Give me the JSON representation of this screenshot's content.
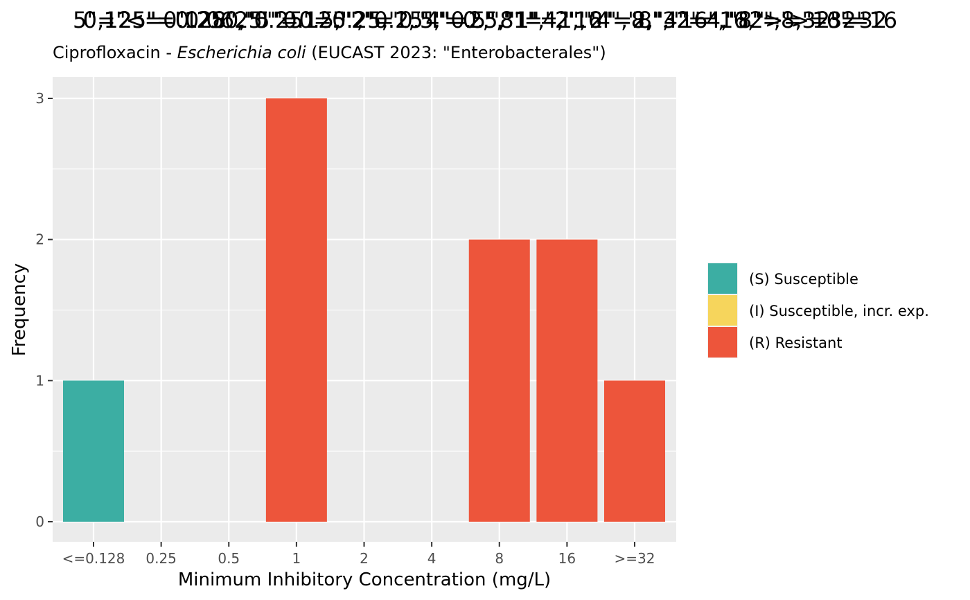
{
  "chart_data": {
    "type": "bar",
    "title": "",
    "title_overlay": [
      "0,125\"=0.250,\"5\"=0.5,\"2\"=1,\"4\"=2,\"8\"=4,\"16\"=8,\"32\"=16,\">=32\"=32",
      "5\"=\"<=0.128\",\"0.25\"=0.25,\"0.5\"=0.5,\"1\"=1,\"2\"=2,\"4\"=4,\"8\"=8,\"16\"=16",
      "125\"=\"0.0625\"\"0.125\",\"0.25\",\"0.5\",\"1\",\"2\",\"4\",\"8\",\"16\",\"32\",\">=32\""
    ],
    "subtitle_prefix": "Ciprofloxacin - ",
    "subtitle_italic": "Escherichia coli",
    "subtitle_suffix": " (EUCAST 2023: \"Enterobacterales\")",
    "xlabel": "Minimum Inhibitory Concentration (mg/L)",
    "ylabel": "Frequency",
    "categories": [
      "<=0.128",
      "0.25",
      "0.5",
      "1",
      "2",
      "4",
      "8",
      "16",
      ">=32"
    ],
    "bars": [
      {
        "category": "<=0.128",
        "value": 1,
        "interpretation": "S"
      },
      {
        "category": "1",
        "value": 3,
        "interpretation": "R"
      },
      {
        "category": "8",
        "value": 2,
        "interpretation": "R"
      },
      {
        "category": "16",
        "value": 2,
        "interpretation": "R"
      },
      {
        "category": ">=32",
        "value": 1,
        "interpretation": "R"
      }
    ],
    "ylim": [
      0,
      3
    ],
    "yticks": [
      0,
      1,
      2,
      3
    ],
    "grid": true,
    "legend_position": "right",
    "legend": [
      {
        "key": "S",
        "label": "(S) Susceptible",
        "color": "#3CAEA3"
      },
      {
        "key": "I",
        "label": "(I) Susceptible, incr. exp.",
        "color": "#F6D55C"
      },
      {
        "key": "R",
        "label": "(R) Resistant",
        "color": "#ED553B"
      }
    ],
    "panel_background": "#EBEBEB",
    "grid_color": "#FFFFFF"
  }
}
